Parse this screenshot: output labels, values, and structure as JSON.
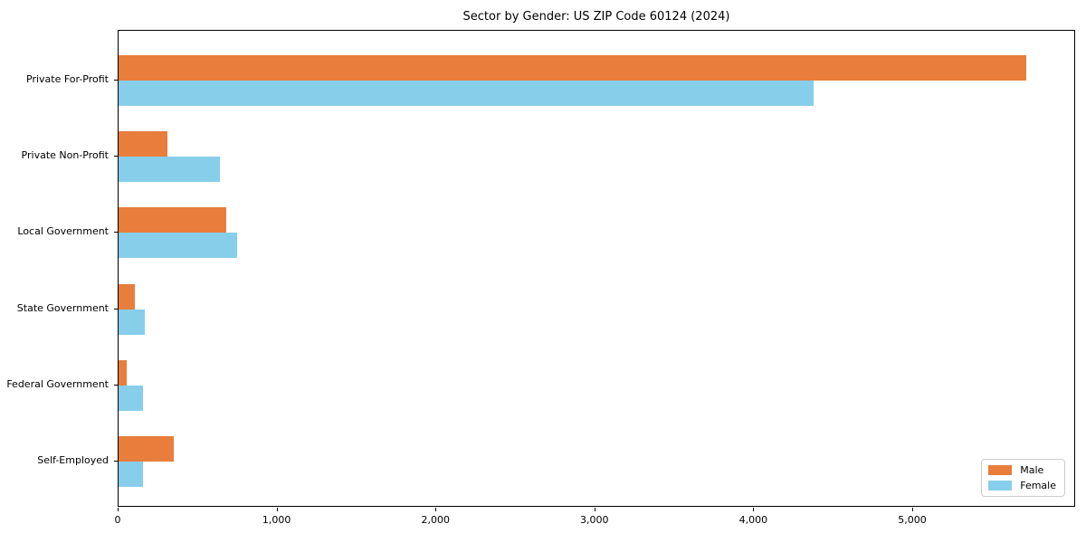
{
  "title": "Sector by Gender: US ZIP Code 60124 (2024)",
  "colors": {
    "male": "#e87d3c",
    "female": "#87ceeb",
    "axis": "#000000",
    "background": "#ffffff",
    "legend_border": "#cccccc"
  },
  "chart_data": {
    "type": "bar",
    "orientation": "horizontal",
    "title": "Sector by Gender: US ZIP Code 60124 (2024)",
    "categories": [
      "Private For-Profit",
      "Private Non-Profit",
      "Local Government",
      "State Government",
      "Federal Government",
      "Self-Employed"
    ],
    "series": [
      {
        "name": "Male",
        "color": "#e87d3c",
        "values": [
          5720,
          310,
          680,
          100,
          50,
          350
        ]
      },
      {
        "name": "Female",
        "color": "#87ceeb",
        "values": [
          4380,
          640,
          750,
          165,
          155,
          155
        ]
      }
    ],
    "xlabel": "",
    "ylabel": "",
    "xlim": [
      0,
      6025
    ],
    "xticks": {
      "values": [
        0,
        1000,
        2000,
        3000,
        4000,
        5000
      ],
      "labels": [
        "0",
        "1,000",
        "2,000",
        "3,000",
        "4,000",
        "5,000"
      ]
    },
    "legend": {
      "position": "lower right",
      "entries": [
        "Male",
        "Female"
      ]
    },
    "grid": false
  }
}
